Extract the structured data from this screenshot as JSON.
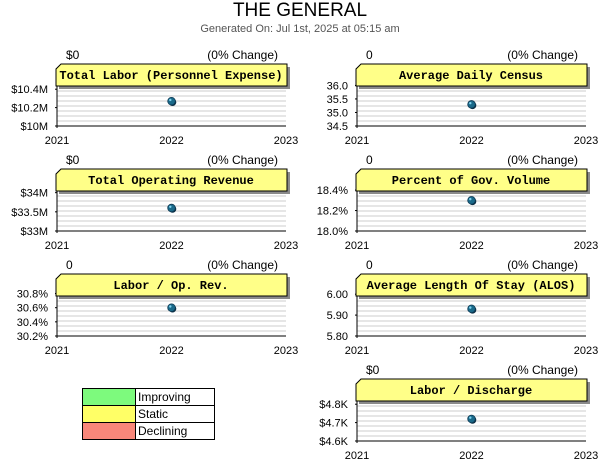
{
  "title": "THE GENERAL",
  "subtitle": "Generated On: Jul 1st, 2025 at 05:15 am",
  "colors": {
    "header_fill": "#ffff88",
    "marker": "#1a6a8a",
    "grid": "#cccccc"
  },
  "legend": [
    {
      "label": "Improving",
      "color": "#7dfa7d"
    },
    {
      "label": "Static",
      "color": "#ffff66"
    },
    {
      "label": "Declining",
      "color": "#f9877a"
    }
  ],
  "chart_data": [
    {
      "type": "scatter",
      "title": "Total Labor (Personnel Expense)",
      "change_value": "$0",
      "change_label": "(0% Change)",
      "x": [
        2022
      ],
      "y": [
        10.27
      ],
      "xlim": [
        2021,
        2023
      ],
      "ylim": [
        10.0,
        10.5
      ],
      "xticks": [
        "2021",
        "2022",
        "2023"
      ],
      "yticks": [
        10.0,
        10.2,
        10.4
      ],
      "yticklabels": [
        "$10M",
        "$10.2M",
        "$10.4M"
      ]
    },
    {
      "type": "scatter",
      "title": "Average Daily Census",
      "change_value": "0",
      "change_label": "(0% Change)",
      "x": [
        2022
      ],
      "y": [
        35.3
      ],
      "xlim": [
        2021,
        2023
      ],
      "ylim": [
        34.5,
        36.2
      ],
      "xticks": [
        "2021",
        "2022",
        "2023"
      ],
      "yticks": [
        34.5,
        35.0,
        35.5,
        36.0
      ],
      "yticklabels": [
        "34.5",
        "35.0",
        "35.5",
        "36.0"
      ]
    },
    {
      "type": "scatter",
      "title": "Total Operating Revenue",
      "change_value": "$0",
      "change_label": "(0% Change)",
      "x": [
        2022
      ],
      "y": [
        33.6
      ],
      "xlim": [
        2021,
        2023
      ],
      "ylim": [
        33.0,
        34.2
      ],
      "xticks": [
        "2021",
        "2022",
        "2023"
      ],
      "yticks": [
        33.0,
        33.5,
        34.0
      ],
      "yticklabels": [
        "$33M",
        "$33.5M",
        "$34M"
      ]
    },
    {
      "type": "scatter",
      "title": "Percent of Gov. Volume",
      "change_value": "0",
      "change_label": "(0% Change)",
      "x": [
        2022
      ],
      "y": [
        18.3
      ],
      "xlim": [
        2021,
        2023
      ],
      "ylim": [
        18.0,
        18.45
      ],
      "xticks": [
        "2021",
        "2022",
        "2023"
      ],
      "yticks": [
        18.0,
        18.2,
        18.4
      ],
      "yticklabels": [
        "18.0%",
        "18.2%",
        "18.4%"
      ]
    },
    {
      "type": "scatter",
      "title": "Labor / Op. Rev.",
      "change_value": "0",
      "change_label": "(0% Change)",
      "x": [
        2022
      ],
      "y": [
        30.6
      ],
      "xlim": [
        2021,
        2023
      ],
      "ylim": [
        30.2,
        30.85
      ],
      "xticks": [
        "2021",
        "2022",
        "2023"
      ],
      "yticks": [
        30.2,
        30.4,
        30.6,
        30.8
      ],
      "yticklabels": [
        "30.2%",
        "30.4%",
        "30.6%",
        "30.8%"
      ]
    },
    {
      "type": "scatter",
      "title": "Average Length Of Stay (ALOS)",
      "change_value": "0",
      "change_label": "(0% Change)",
      "x": [
        2022
      ],
      "y": [
        5.93
      ],
      "xlim": [
        2021,
        2023
      ],
      "ylim": [
        5.8,
        6.02
      ],
      "xticks": [
        "2021",
        "2022",
        "2023"
      ],
      "yticks": [
        5.8,
        5.9,
        6.0
      ],
      "yticklabels": [
        "5.80",
        "5.90",
        "6.00"
      ]
    },
    {
      "type": "scatter",
      "title": "Labor / Discharge",
      "change_value": "$0",
      "change_label": "(0% Change)",
      "x": [
        2022
      ],
      "y": [
        4.72
      ],
      "xlim": [
        2021,
        2023
      ],
      "ylim": [
        4.6,
        4.85
      ],
      "xticks": [
        "2021",
        "2022",
        "2023"
      ],
      "yticks": [
        4.6,
        4.7,
        4.8
      ],
      "yticklabels": [
        "$4.6K",
        "$4.7K",
        "$4.8K"
      ]
    }
  ]
}
